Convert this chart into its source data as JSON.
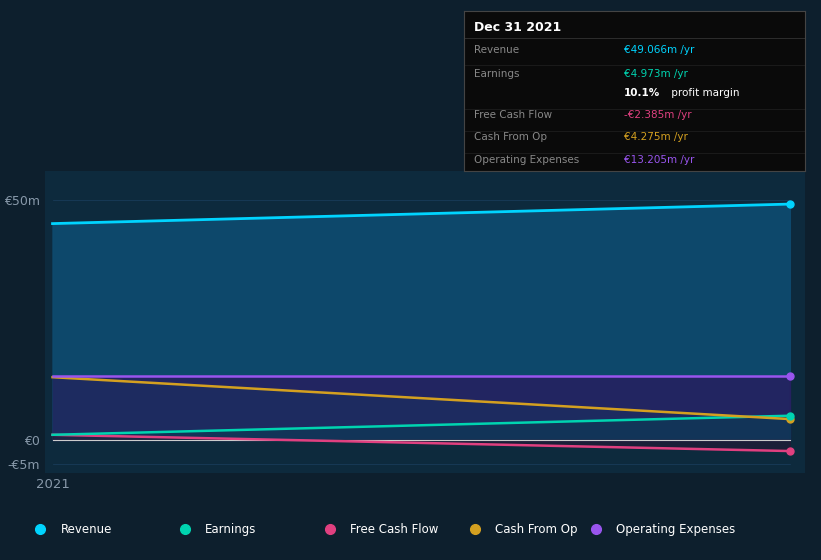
{
  "bg_color": "#0d1f2d",
  "plot_bg_color": "#0d2a3d",
  "title": "Dec 31 2021",
  "ylim_min": -7,
  "ylim_max": 56,
  "ytick_vals": [
    -5,
    0,
    50
  ],
  "ytick_labels": [
    "-€5m",
    "€0",
    "€50m"
  ],
  "x_label": "2021",
  "series": [
    {
      "name": "Revenue",
      "values": [
        45.0,
        49.066
      ],
      "line_color": "#00d4ff",
      "fill_color": "#0d4a6e",
      "fill_alpha": 0.95,
      "lw": 2.0,
      "zorder": 10
    },
    {
      "name": "Operating Expenses",
      "values": [
        13.2,
        13.205
      ],
      "line_color": "#9955ee",
      "fill_color": "#2a1a5e",
      "fill_alpha": 0.75,
      "lw": 1.8,
      "zorder": 9
    },
    {
      "name": "Cash From Op",
      "values": [
        13.0,
        4.275
      ],
      "line_color": "#d4a020",
      "fill_color": "#1a3060",
      "fill_alpha": 0.55,
      "lw": 1.8,
      "zorder": 8
    },
    {
      "name": "Earnings",
      "values": [
        1.0,
        4.973
      ],
      "line_color": "#00d4b0",
      "fill_color": "#0d3a55",
      "fill_alpha": 0.65,
      "lw": 1.8,
      "zorder": 7
    },
    {
      "name": "Free Cash Flow",
      "values": [
        1.0,
        -2.385
      ],
      "line_color": "#e04080",
      "fill_color": "#2a1535",
      "fill_alpha": 0.5,
      "lw": 1.8,
      "zorder": 6
    }
  ],
  "grid_color": "#1a3f5f",
  "zero_line_color": "#cccccc",
  "axis_text_color": "#8899aa",
  "info_box": {
    "title": "Dec 31 2021",
    "title_color": "#ffffff",
    "bg_color": "#0a0a0a",
    "border_color": "#444444",
    "label_color": "#888888",
    "rows": [
      {
        "label": "Revenue",
        "value": "€49.066m /yr",
        "vcolor": "#00d4ff",
        "sep": true
      },
      {
        "label": "Earnings",
        "value": "€4.973m /yr",
        "vcolor": "#00d4b0",
        "sep": false
      },
      {
        "label": "",
        "value2a": "10.1%",
        "value2b": " profit margin",
        "vcolor": "#ffffff",
        "sep": true
      },
      {
        "label": "Free Cash Flow",
        "value": "-€2.385m /yr",
        "vcolor": "#e04080",
        "sep": true
      },
      {
        "label": "Cash From Op",
        "value": "€4.275m /yr",
        "vcolor": "#d4a020",
        "sep": true
      },
      {
        "label": "Operating Expenses",
        "value": "€13.205m /yr",
        "vcolor": "#9955ee",
        "sep": false
      }
    ]
  },
  "legend": [
    {
      "label": "Revenue",
      "color": "#00d4ff"
    },
    {
      "label": "Earnings",
      "color": "#00d4b0"
    },
    {
      "label": "Free Cash Flow",
      "color": "#e04080"
    },
    {
      "label": "Cash From Op",
      "color": "#d4a020"
    },
    {
      "label": "Operating Expenses",
      "color": "#9955ee"
    }
  ]
}
